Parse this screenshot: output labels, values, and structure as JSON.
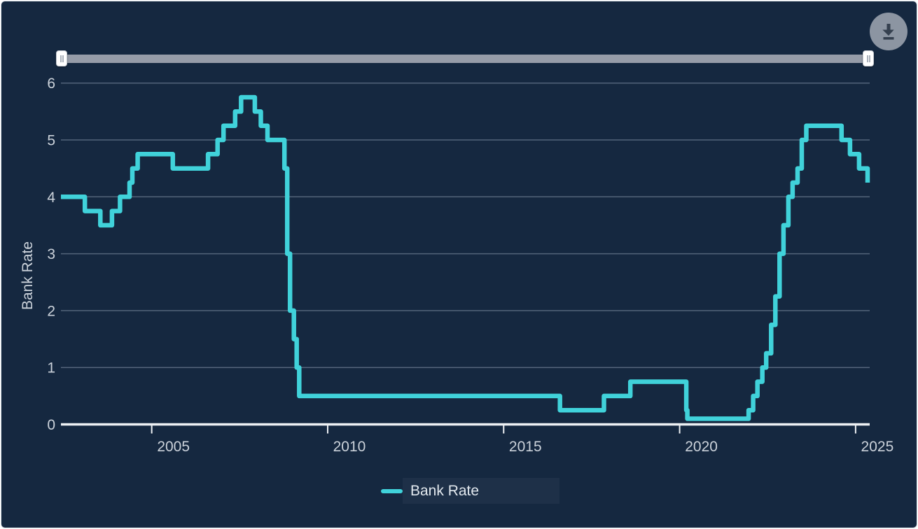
{
  "panel": {
    "background_color": "#152840",
    "accent_color": "#40d2da",
    "gridline_color": "#53647a",
    "axis_line_color": "#eef1f4",
    "tick_label_color": "#cbd2da"
  },
  "toolbar": {
    "download_icon": "download-icon"
  },
  "range_slider": {
    "left_handle_position": "min",
    "right_handle_position": "max",
    "grip_icon": "slider-grip-icon"
  },
  "chart_data": {
    "type": "line",
    "step": true,
    "title": "",
    "xlabel": "",
    "ylabel": "Bank Rate",
    "xlim": [
      2002.42,
      2025.4
    ],
    "ylim": [
      0,
      6
    ],
    "grid": true,
    "x_ticks": [
      {
        "value": 2005,
        "label": "2005"
      },
      {
        "value": 2010,
        "label": "2010"
      },
      {
        "value": 2015,
        "label": "2015"
      },
      {
        "value": 2020,
        "label": "2020"
      },
      {
        "value": 2025,
        "label": "2025"
      }
    ],
    "y_ticks": [
      {
        "value": 0,
        "label": "0"
      },
      {
        "value": 1,
        "label": "1"
      },
      {
        "value": 2,
        "label": "2"
      },
      {
        "value": 3,
        "label": "3"
      },
      {
        "value": 4,
        "label": "4"
      },
      {
        "value": 5,
        "label": "5"
      },
      {
        "value": 6,
        "label": "6"
      }
    ],
    "legend": {
      "position": "bottom",
      "entries": [
        "Bank Rate"
      ]
    },
    "series": [
      {
        "name": "Bank Rate",
        "color": "#40d2da",
        "points": [
          [
            2002.42,
            4.0
          ],
          [
            2003.1,
            3.75
          ],
          [
            2003.54,
            3.5
          ],
          [
            2003.87,
            3.75
          ],
          [
            2004.1,
            4.0
          ],
          [
            2004.37,
            4.25
          ],
          [
            2004.45,
            4.5
          ],
          [
            2004.6,
            4.75
          ],
          [
            2005.6,
            4.5
          ],
          [
            2006.6,
            4.75
          ],
          [
            2006.87,
            5.0
          ],
          [
            2007.04,
            5.25
          ],
          [
            2007.37,
            5.5
          ],
          [
            2007.54,
            5.75
          ],
          [
            2007.93,
            5.5
          ],
          [
            2008.1,
            5.25
          ],
          [
            2008.29,
            5.0
          ],
          [
            2008.77,
            4.5
          ],
          [
            2008.85,
            3.0
          ],
          [
            2008.93,
            2.0
          ],
          [
            2009.04,
            1.5
          ],
          [
            2009.12,
            1.0
          ],
          [
            2009.19,
            0.5
          ],
          [
            2016.6,
            0.25
          ],
          [
            2017.85,
            0.5
          ],
          [
            2018.6,
            0.75
          ],
          [
            2020.19,
            0.25
          ],
          [
            2020.22,
            0.1
          ],
          [
            2021.96,
            0.25
          ],
          [
            2022.09,
            0.5
          ],
          [
            2022.21,
            0.75
          ],
          [
            2022.35,
            1.0
          ],
          [
            2022.46,
            1.25
          ],
          [
            2022.6,
            1.75
          ],
          [
            2022.72,
            2.25
          ],
          [
            2022.84,
            3.0
          ],
          [
            2022.95,
            3.5
          ],
          [
            2023.09,
            4.0
          ],
          [
            2023.21,
            4.25
          ],
          [
            2023.35,
            4.5
          ],
          [
            2023.47,
            5.0
          ],
          [
            2023.6,
            5.25
          ],
          [
            2024.6,
            5.0
          ],
          [
            2024.84,
            4.75
          ],
          [
            2025.1,
            4.5
          ],
          [
            2025.34,
            4.25
          ]
        ]
      }
    ]
  }
}
